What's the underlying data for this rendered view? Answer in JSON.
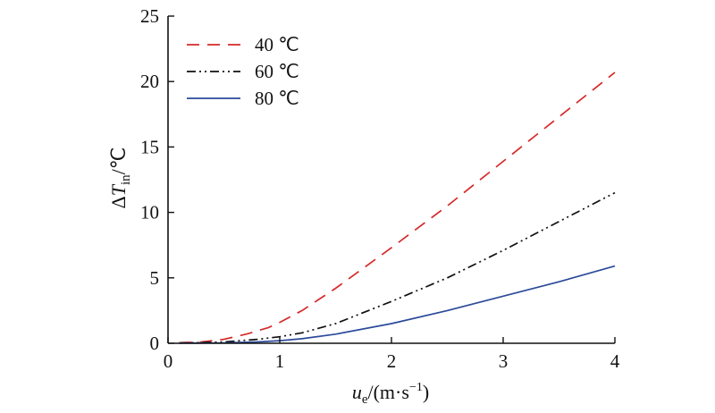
{
  "chart_data": {
    "type": "line",
    "title": "",
    "xlabel": "u_e/(m·s^-1)",
    "xlabel_parts": {
      "base": "u",
      "sub": "e",
      "rest": "/(m·s",
      "sup": "−1",
      "close": ")"
    },
    "ylabel": "ΔT_in/℃",
    "ylabel_parts": {
      "delta": "Δ",
      "base": "T",
      "sub": "in",
      "rest": "/℃"
    },
    "xlim": [
      0,
      4
    ],
    "ylim": [
      0,
      25
    ],
    "xticks": [
      0,
      1,
      2,
      3,
      4
    ],
    "yticks": [
      0,
      5,
      10,
      15,
      20,
      25
    ],
    "grid": false,
    "legend_position": "top-left",
    "series": [
      {
        "name": "40 ℃",
        "color": "#d42a2a",
        "style": "dashed",
        "x": [
          0.1,
          0.3,
          0.5,
          0.7,
          0.9,
          1.0,
          1.2,
          1.5,
          2.0,
          2.5,
          3.0,
          3.5,
          4.0
        ],
        "y": [
          0.05,
          0.1,
          0.3,
          0.7,
          1.2,
          1.6,
          2.5,
          4.2,
          7.3,
          10.5,
          13.9,
          17.3,
          20.7
        ]
      },
      {
        "name": "60 ℃",
        "color": "#111111",
        "style": "dashdot",
        "x": [
          0.1,
          0.5,
          0.8,
          1.0,
          1.2,
          1.5,
          2.0,
          2.5,
          3.0,
          3.5,
          4.0
        ],
        "y": [
          0.02,
          0.1,
          0.3,
          0.5,
          0.8,
          1.5,
          3.2,
          5.0,
          7.1,
          9.3,
          11.5
        ]
      },
      {
        "name": "80 ℃",
        "color": "#2b4a9a",
        "style": "solid",
        "x": [
          0.1,
          0.5,
          0.8,
          1.0,
          1.2,
          1.5,
          2.0,
          2.5,
          3.0,
          3.5,
          4.0
        ],
        "y": [
          0.01,
          0.03,
          0.1,
          0.2,
          0.35,
          0.7,
          1.5,
          2.5,
          3.6,
          4.7,
          5.9
        ]
      }
    ]
  }
}
